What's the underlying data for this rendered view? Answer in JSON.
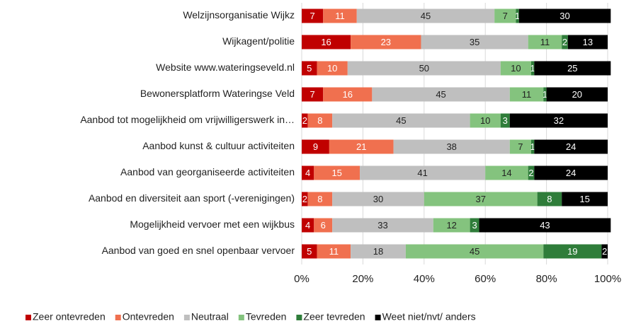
{
  "chart_data": {
    "type": "stacked-bar-horizontal",
    "categories": [
      "Welzijnsorganisatie Wijkz",
      "Wijkagent/politie",
      "Website www.wateringseveld.nl",
      "Bewonersplatform Wateringse Veld",
      "Aanbod tot mogelijkheid om vrijwilligerswerk in…",
      "Aanbod kunst & cultuur activiteiten",
      "Aanbod van georganiseerde activiteiten",
      "Aanbod en diversiteit aan sport (-verenigingen)",
      "Mogelijkheid vervoer met een wijkbus",
      "Aanbod van goed en snel openbaar vervoer"
    ],
    "series": [
      {
        "name": "Zeer ontevreden",
        "color": "#c00000",
        "values": [
          7,
          16,
          5,
          7,
          2,
          9,
          4,
          2,
          4,
          5
        ]
      },
      {
        "name": "Ontevreden",
        "color": "#f0704f",
        "values": [
          11,
          23,
          10,
          16,
          8,
          21,
          15,
          8,
          6,
          11
        ]
      },
      {
        "name": "Neutraal",
        "color": "#bfbfbf",
        "values": [
          45,
          35,
          50,
          45,
          45,
          38,
          41,
          30,
          33,
          18
        ]
      },
      {
        "name": "Tevreden",
        "color": "#84c37e",
        "values": [
          7,
          11,
          10,
          11,
          10,
          7,
          14,
          37,
          12,
          45
        ]
      },
      {
        "name": "Zeer tevreden",
        "color": "#2f7d3a",
        "values": [
          1,
          2,
          1,
          1,
          3,
          1,
          2,
          8,
          3,
          19
        ]
      },
      {
        "name": "Weet niet/nvt/ anders",
        "color": "#000000",
        "values": [
          30,
          13,
          25,
          20,
          32,
          24,
          24,
          15,
          43,
          2
        ]
      }
    ],
    "xlim": [
      0,
      100
    ],
    "xticks": [
      {
        "value": 0,
        "label": "0%"
      },
      {
        "value": 20,
        "label": "20%"
      },
      {
        "value": 40,
        "label": "40%"
      },
      {
        "value": 60,
        "label": "60%"
      },
      {
        "value": 80,
        "label": "80%"
      },
      {
        "value": 100,
        "label": "100%"
      }
    ],
    "grid": true,
    "legend": "bottom"
  }
}
